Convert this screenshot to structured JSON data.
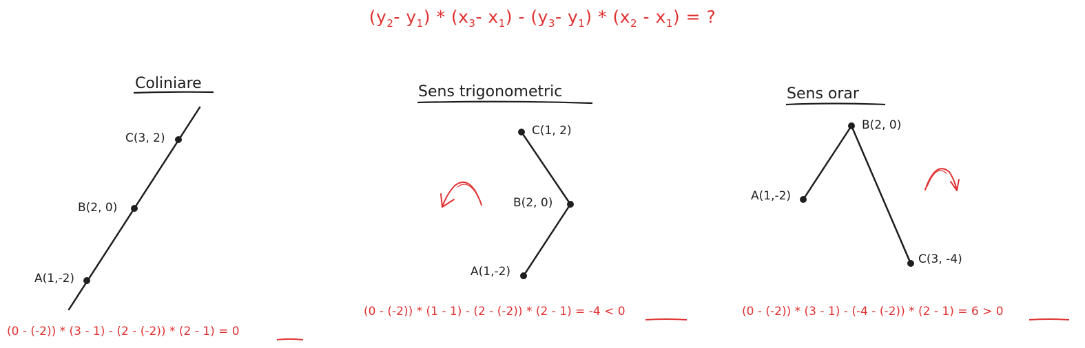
{
  "formula": {
    "parts": [
      "(y",
      "2",
      "- y",
      "1",
      ") * (x",
      "3",
      "- x",
      "1",
      ") - (y",
      "3",
      "- y",
      "1",
      ") * (x",
      "2",
      " - x",
      "1",
      ") = ?"
    ]
  },
  "panels": [
    {
      "title": "Coliniare",
      "points": {
        "A": "A(1,-2)",
        "B": "B(2, 0)",
        "C": "C(3, 2)"
      },
      "calc": "(0 - (-2)) * (3 - 1) - (2 - (-2)) * (2 - 1) ",
      "result": "= 0"
    },
    {
      "title": "Sens trigonometric",
      "points": {
        "A": "A(1,-2)",
        "B": "B(2, 0)",
        "C": "C(1, 2)"
      },
      "calc": "(0 - (-2)) * (1 - 1) - (2 - (-2)) * (2 - 1) = ",
      "result": "-4 < 0"
    },
    {
      "title": "Sens orar",
      "points": {
        "A": "A(1,-2)",
        "B": "B(2, 0)",
        "C": "C(3, -4)"
      },
      "calc": "(0 - (-2)) * (3 - 1) - (-4 - (-2)) * (2 - 1) = ",
      "result": "6 > 0"
    }
  ],
  "colors": {
    "ink": "#1e1e1e",
    "accent": "#e03131"
  }
}
